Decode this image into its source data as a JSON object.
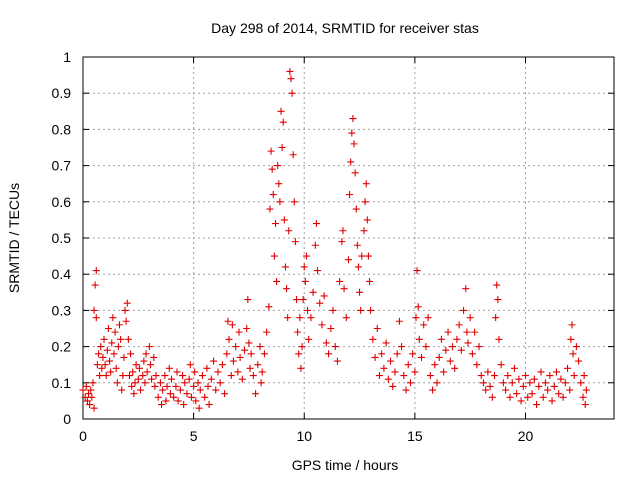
{
  "chart_data": {
    "type": "scatter",
    "title": "Day 298 of 2014, SRMTID for receiver stas",
    "xlabel": "GPS time / hours",
    "ylabel": "SRMTID / TECUs",
    "xlim": [
      0,
      24
    ],
    "ylim": [
      0,
      1
    ],
    "x_ticks": [
      0,
      5,
      10,
      15,
      20
    ],
    "y_ticks": [
      0,
      0.1,
      0.2,
      0.3,
      0.4,
      0.5,
      0.6,
      0.7,
      0.8,
      0.9,
      1
    ],
    "x_tick_labels": [
      "0",
      "5",
      "10",
      "15",
      "20"
    ],
    "y_tick_labels": [
      "0",
      "0.1",
      "0.2",
      "0.3",
      "0.4",
      "0.5",
      "0.6",
      "0.7",
      "0.8",
      "0.9",
      "1"
    ],
    "grid": true,
    "marker": "+",
    "marker_color": "#e00000",
    "series": [
      {
        "name": "stas",
        "points": [
          [
            0.0,
            0.08
          ],
          [
            0.1,
            0.06
          ],
          [
            0.15,
            0.09
          ],
          [
            0.2,
            0.05
          ],
          [
            0.25,
            0.07
          ],
          [
            0.3,
            0.04
          ],
          [
            0.35,
            0.08
          ],
          [
            0.4,
            0.06
          ],
          [
            0.45,
            0.1
          ],
          [
            0.5,
            0.03
          ],
          [
            0.5,
            0.3
          ],
          [
            0.55,
            0.37
          ],
          [
            0.6,
            0.41
          ],
          [
            0.6,
            0.28
          ],
          [
            0.65,
            0.15
          ],
          [
            0.7,
            0.18
          ],
          [
            0.75,
            0.12
          ],
          [
            0.8,
            0.2
          ],
          [
            0.85,
            0.14
          ],
          [
            0.9,
            0.17
          ],
          [
            0.95,
            0.22
          ],
          [
            1.0,
            0.15
          ],
          [
            1.05,
            0.12
          ],
          [
            1.1,
            0.19
          ],
          [
            1.15,
            0.25
          ],
          [
            1.2,
            0.16
          ],
          [
            1.25,
            0.13
          ],
          [
            1.3,
            0.21
          ],
          [
            1.35,
            0.28
          ],
          [
            1.4,
            0.18
          ],
          [
            1.45,
            0.24
          ],
          [
            1.5,
            0.14
          ],
          [
            1.55,
            0.1
          ],
          [
            1.6,
            0.2
          ],
          [
            1.65,
            0.26
          ],
          [
            1.7,
            0.22
          ],
          [
            1.75,
            0.08
          ],
          [
            1.8,
            0.12
          ],
          [
            1.85,
            0.17
          ],
          [
            1.9,
            0.3
          ],
          [
            1.95,
            0.27
          ],
          [
            2.0,
            0.32
          ],
          [
            2.05,
            0.22
          ],
          [
            2.1,
            0.12
          ],
          [
            2.15,
            0.18
          ],
          [
            2.2,
            0.09
          ],
          [
            2.25,
            0.13
          ],
          [
            2.3,
            0.07
          ],
          [
            2.35,
            0.1
          ],
          [
            2.4,
            0.15
          ],
          [
            2.5,
            0.11
          ],
          [
            2.55,
            0.14
          ],
          [
            2.6,
            0.08
          ],
          [
            2.7,
            0.12
          ],
          [
            2.75,
            0.16
          ],
          [
            2.8,
            0.1
          ],
          [
            2.85,
            0.18
          ],
          [
            2.9,
            0.13
          ],
          [
            3.0,
            0.2
          ],
          [
            3.05,
            0.15
          ],
          [
            3.1,
            0.11
          ],
          [
            3.2,
            0.17
          ],
          [
            3.25,
            0.09
          ],
          [
            3.3,
            0.12
          ],
          [
            3.4,
            0.06
          ],
          [
            3.5,
            0.1
          ],
          [
            3.55,
            0.04
          ],
          [
            3.6,
            0.08
          ],
          [
            3.7,
            0.12
          ],
          [
            3.75,
            0.05
          ],
          [
            3.8,
            0.09
          ],
          [
            3.9,
            0.14
          ],
          [
            3.95,
            0.07
          ],
          [
            4.0,
            0.11
          ],
          [
            4.1,
            0.06
          ],
          [
            4.2,
            0.09
          ],
          [
            4.25,
            0.13
          ],
          [
            4.3,
            0.05
          ],
          [
            4.4,
            0.08
          ],
          [
            4.5,
            0.12
          ],
          [
            4.55,
            0.04
          ],
          [
            4.6,
            0.1
          ],
          [
            4.7,
            0.07
          ],
          [
            4.8,
            0.11
          ],
          [
            4.85,
            0.15
          ],
          [
            4.9,
            0.06
          ],
          [
            5.0,
            0.09
          ],
          [
            5.05,
            0.13
          ],
          [
            5.1,
            0.05
          ],
          [
            5.2,
            0.1
          ],
          [
            5.25,
            0.03
          ],
          [
            5.3,
            0.08
          ],
          [
            5.4,
            0.12
          ],
          [
            5.5,
            0.06
          ],
          [
            5.6,
            0.14
          ],
          [
            5.65,
            0.09
          ],
          [
            5.7,
            0.04
          ],
          [
            5.8,
            0.11
          ],
          [
            5.9,
            0.16
          ],
          [
            6.0,
            0.08
          ],
          [
            6.1,
            0.13
          ],
          [
            6.2,
            0.1
          ],
          [
            6.3,
            0.15
          ],
          [
            6.4,
            0.07
          ],
          [
            6.5,
            0.18
          ],
          [
            6.55,
            0.27
          ],
          [
            6.6,
            0.22
          ],
          [
            6.7,
            0.12
          ],
          [
            6.75,
            0.26
          ],
          [
            6.8,
            0.16
          ],
          [
            6.9,
            0.2
          ],
          [
            7.0,
            0.13
          ],
          [
            7.05,
            0.24
          ],
          [
            7.1,
            0.17
          ],
          [
            7.2,
            0.11
          ],
          [
            7.3,
            0.19
          ],
          [
            7.4,
            0.25
          ],
          [
            7.45,
            0.33
          ],
          [
            7.5,
            0.21
          ],
          [
            7.55,
            0.14
          ],
          [
            7.6,
            0.18
          ],
          [
            7.7,
            0.12
          ],
          [
            7.8,
            0.07
          ],
          [
            7.9,
            0.15
          ],
          [
            8.0,
            0.2
          ],
          [
            8.05,
            0.1
          ],
          [
            8.1,
            0.13
          ],
          [
            8.2,
            0.18
          ],
          [
            8.3,
            0.24
          ],
          [
            8.4,
            0.31
          ],
          [
            8.45,
            0.58
          ],
          [
            8.5,
            0.74
          ],
          [
            8.55,
            0.69
          ],
          [
            8.6,
            0.62
          ],
          [
            8.65,
            0.45
          ],
          [
            8.7,
            0.54
          ],
          [
            8.75,
            0.38
          ],
          [
            8.8,
            0.7
          ],
          [
            8.85,
            0.65
          ],
          [
            8.9,
            0.6
          ],
          [
            8.95,
            0.85
          ],
          [
            9.0,
            0.75
          ],
          [
            9.05,
            0.82
          ],
          [
            9.1,
            0.55
          ],
          [
            9.15,
            0.42
          ],
          [
            9.2,
            0.36
          ],
          [
            9.25,
            0.28
          ],
          [
            9.3,
            0.52
          ],
          [
            9.35,
            0.96
          ],
          [
            9.4,
            0.94
          ],
          [
            9.45,
            0.9
          ],
          [
            9.5,
            0.73
          ],
          [
            9.55,
            0.6
          ],
          [
            9.6,
            0.49
          ],
          [
            9.65,
            0.33
          ],
          [
            9.7,
            0.24
          ],
          [
            9.75,
            0.18
          ],
          [
            9.8,
            0.28
          ],
          [
            9.85,
            0.14
          ],
          [
            9.9,
            0.2
          ],
          [
            9.95,
            0.33
          ],
          [
            10.0,
            0.42
          ],
          [
            10.05,
            0.38
          ],
          [
            10.1,
            0.45
          ],
          [
            10.15,
            0.3
          ],
          [
            10.2,
            0.22
          ],
          [
            10.3,
            0.28
          ],
          [
            10.4,
            0.35
          ],
          [
            10.5,
            0.48
          ],
          [
            10.55,
            0.54
          ],
          [
            10.6,
            0.41
          ],
          [
            10.7,
            0.32
          ],
          [
            10.8,
            0.26
          ],
          [
            10.9,
            0.34
          ],
          [
            11.0,
            0.21
          ],
          [
            11.1,
            0.18
          ],
          [
            11.2,
            0.25
          ],
          [
            11.3,
            0.3
          ],
          [
            11.4,
            0.2
          ],
          [
            11.5,
            0.16
          ],
          [
            11.6,
            0.38
          ],
          [
            11.7,
            0.49
          ],
          [
            11.75,
            0.52
          ],
          [
            11.8,
            0.36
          ],
          [
            11.9,
            0.28
          ],
          [
            12.0,
            0.44
          ],
          [
            12.05,
            0.62
          ],
          [
            12.1,
            0.71
          ],
          [
            12.15,
            0.79
          ],
          [
            12.2,
            0.83
          ],
          [
            12.25,
            0.76
          ],
          [
            12.3,
            0.68
          ],
          [
            12.35,
            0.58
          ],
          [
            12.4,
            0.48
          ],
          [
            12.45,
            0.42
          ],
          [
            12.5,
            0.35
          ],
          [
            12.55,
            0.3
          ],
          [
            12.6,
            0.45
          ],
          [
            12.7,
            0.52
          ],
          [
            12.75,
            0.6
          ],
          [
            12.8,
            0.65
          ],
          [
            12.85,
            0.55
          ],
          [
            12.9,
            0.45
          ],
          [
            12.95,
            0.38
          ],
          [
            13.0,
            0.3
          ],
          [
            13.1,
            0.22
          ],
          [
            13.2,
            0.17
          ],
          [
            13.3,
            0.25
          ],
          [
            13.4,
            0.12
          ],
          [
            13.5,
            0.18
          ],
          [
            13.6,
            0.14
          ],
          [
            13.7,
            0.21
          ],
          [
            13.8,
            0.11
          ],
          [
            13.9,
            0.16
          ],
          [
            14.0,
            0.09
          ],
          [
            14.1,
            0.13
          ],
          [
            14.2,
            0.18
          ],
          [
            14.3,
            0.27
          ],
          [
            14.4,
            0.2
          ],
          [
            14.5,
            0.12
          ],
          [
            14.6,
            0.08
          ],
          [
            14.7,
            0.15
          ],
          [
            14.8,
            0.1
          ],
          [
            14.9,
            0.18
          ],
          [
            15.0,
            0.13
          ],
          [
            15.05,
            0.28
          ],
          [
            15.1,
            0.41
          ],
          [
            15.15,
            0.31
          ],
          [
            15.2,
            0.22
          ],
          [
            15.3,
            0.17
          ],
          [
            15.4,
            0.26
          ],
          [
            15.5,
            0.2
          ],
          [
            15.6,
            0.28
          ],
          [
            15.7,
            0.12
          ],
          [
            15.8,
            0.08
          ],
          [
            15.9,
            0.15
          ],
          [
            16.0,
            0.1
          ],
          [
            16.1,
            0.17
          ],
          [
            16.2,
            0.22
          ],
          [
            16.3,
            0.13
          ],
          [
            16.4,
            0.19
          ],
          [
            16.5,
            0.24
          ],
          [
            16.6,
            0.16
          ],
          [
            16.7,
            0.2
          ],
          [
            16.8,
            0.14
          ],
          [
            16.9,
            0.22
          ],
          [
            17.0,
            0.26
          ],
          [
            17.1,
            0.19
          ],
          [
            17.2,
            0.3
          ],
          [
            17.3,
            0.36
          ],
          [
            17.35,
            0.24
          ],
          [
            17.4,
            0.21
          ],
          [
            17.5,
            0.28
          ],
          [
            17.6,
            0.18
          ],
          [
            17.7,
            0.24
          ],
          [
            17.8,
            0.15
          ],
          [
            17.9,
            0.2
          ],
          [
            18.0,
            0.12
          ],
          [
            18.1,
            0.1
          ],
          [
            18.2,
            0.08
          ],
          [
            18.3,
            0.13
          ],
          [
            18.4,
            0.09
          ],
          [
            18.5,
            0.06
          ],
          [
            18.6,
            0.12
          ],
          [
            18.65,
            0.28
          ],
          [
            18.7,
            0.37
          ],
          [
            18.75,
            0.33
          ],
          [
            18.8,
            0.22
          ],
          [
            18.9,
            0.15
          ],
          [
            19.0,
            0.1
          ],
          [
            19.1,
            0.08
          ],
          [
            19.2,
            0.12
          ],
          [
            19.3,
            0.06
          ],
          [
            19.4,
            0.1
          ],
          [
            19.5,
            0.14
          ],
          [
            19.6,
            0.07
          ],
          [
            19.7,
            0.11
          ],
          [
            19.8,
            0.05
          ],
          [
            19.9,
            0.09
          ],
          [
            20.0,
            0.12
          ],
          [
            20.1,
            0.06
          ],
          [
            20.2,
            0.1
          ],
          [
            20.3,
            0.07
          ],
          [
            20.4,
            0.11
          ],
          [
            20.5,
            0.04
          ],
          [
            20.6,
            0.09
          ],
          [
            20.7,
            0.13
          ],
          [
            20.8,
            0.06
          ],
          [
            20.9,
            0.1
          ],
          [
            21.0,
            0.08
          ],
          [
            21.1,
            0.12
          ],
          [
            21.2,
            0.05
          ],
          [
            21.3,
            0.09
          ],
          [
            21.4,
            0.13
          ],
          [
            21.5,
            0.07
          ],
          [
            21.6,
            0.11
          ],
          [
            21.7,
            0.06
          ],
          [
            21.8,
            0.1
          ],
          [
            21.9,
            0.14
          ],
          [
            22.0,
            0.08
          ],
          [
            22.05,
            0.22
          ],
          [
            22.1,
            0.26
          ],
          [
            22.15,
            0.18
          ],
          [
            22.2,
            0.12
          ],
          [
            22.3,
            0.2
          ],
          [
            22.4,
            0.16
          ],
          [
            22.5,
            0.1
          ],
          [
            22.6,
            0.06
          ],
          [
            22.65,
            0.12
          ],
          [
            22.7,
            0.04
          ],
          [
            22.75,
            0.08
          ]
        ]
      }
    ]
  }
}
